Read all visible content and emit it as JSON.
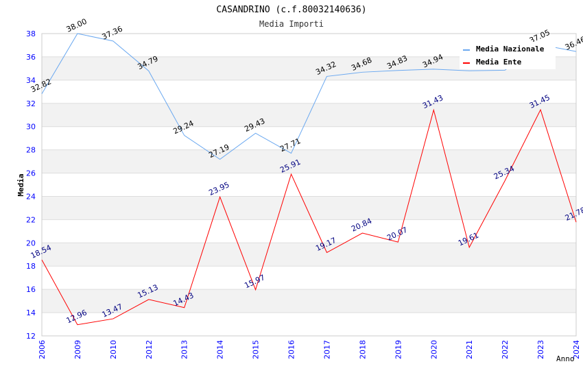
{
  "chart_data": {
    "type": "line",
    "title": "CASANDRINO (c.f.80032140636)",
    "subtitle": "Media Importi",
    "xlabel": "Anno",
    "ylabel": "Media",
    "ylim": [
      12,
      38
    ],
    "yticks": [
      12,
      14,
      16,
      18,
      20,
      22,
      24,
      26,
      28,
      30,
      32,
      34,
      36,
      38
    ],
    "categories": [
      "2006",
      "2009",
      "2010",
      "2012",
      "2013",
      "2014",
      "2015",
      "2016",
      "2017",
      "2018",
      "2019",
      "2020",
      "2021",
      "2022",
      "2023",
      "2024"
    ],
    "legend_position": "top-right",
    "series": [
      {
        "name": "Media Nazionale",
        "color": "#6aa8f0",
        "label_color": "#000000",
        "values": [
          32.82,
          38.0,
          37.36,
          34.79,
          29.24,
          27.19,
          29.43,
          27.71,
          34.32,
          34.68,
          34.83,
          34.94,
          34.8,
          34.85,
          37.05,
          36.46
        ],
        "labels": [
          "32.82",
          "38.00",
          "37.36",
          "34.79",
          "29.24",
          "27.19",
          "29.43",
          "27.71",
          "34.32",
          "34.68",
          "34.83",
          "34.94",
          "",
          "",
          "37.05",
          "36.46"
        ]
      },
      {
        "name": "Media Ente",
        "color": "#ff0000",
        "label_color": "#000080",
        "values": [
          18.54,
          12.96,
          13.47,
          15.13,
          14.43,
          23.95,
          15.97,
          25.91,
          19.17,
          20.84,
          20.07,
          31.43,
          19.61,
          25.34,
          31.45,
          21.78
        ],
        "labels": [
          "18.54",
          "12.96",
          "13.47",
          "15.13",
          "14.43",
          "23.95",
          "15.97",
          "25.91",
          "19.17",
          "20.84",
          "20.07",
          "31.43",
          "19.61",
          "25.34",
          "31.45",
          "21.78"
        ]
      }
    ]
  }
}
